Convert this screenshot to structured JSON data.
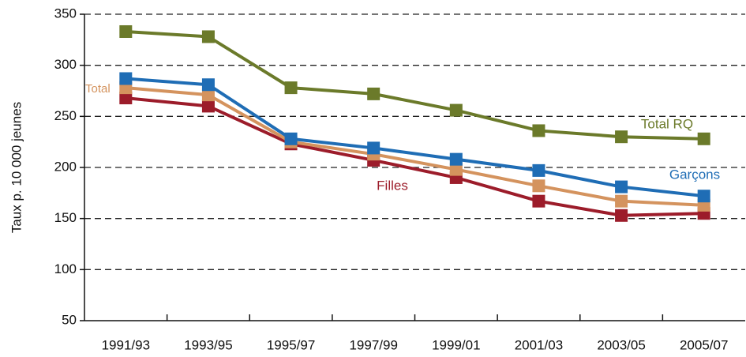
{
  "chart_data": {
    "type": "line",
    "y_label": "Taux p. 10 000 jeunes",
    "categories": [
      "1991/93",
      "1993/95",
      "1995/97",
      "1997/99",
      "1999/01",
      "2001/03",
      "2003/05",
      "2005/07"
    ],
    "series": [
      {
        "name": "Filles",
        "color": "#9c1c2a",
        "values": [
          268,
          260,
          223,
          207,
          190,
          167,
          153,
          155
        ]
      },
      {
        "name": "Total",
        "color": "#d4935e",
        "values": [
          278,
          271,
          225,
          213,
          198,
          182,
          167,
          163
        ]
      },
      {
        "name": "Garçons",
        "color": "#1f6db5",
        "values": [
          287,
          281,
          228,
          219,
          208,
          197,
          181,
          172
        ]
      },
      {
        "name": "Total RQ",
        "color": "#6b7a2a",
        "values": [
          333,
          328,
          278,
          272,
          256,
          236,
          230,
          228
        ]
      }
    ],
    "ylim": [
      50,
      350
    ],
    "yticks": [
      50,
      100,
      150,
      200,
      250,
      300,
      350
    ],
    "grid": true
  }
}
